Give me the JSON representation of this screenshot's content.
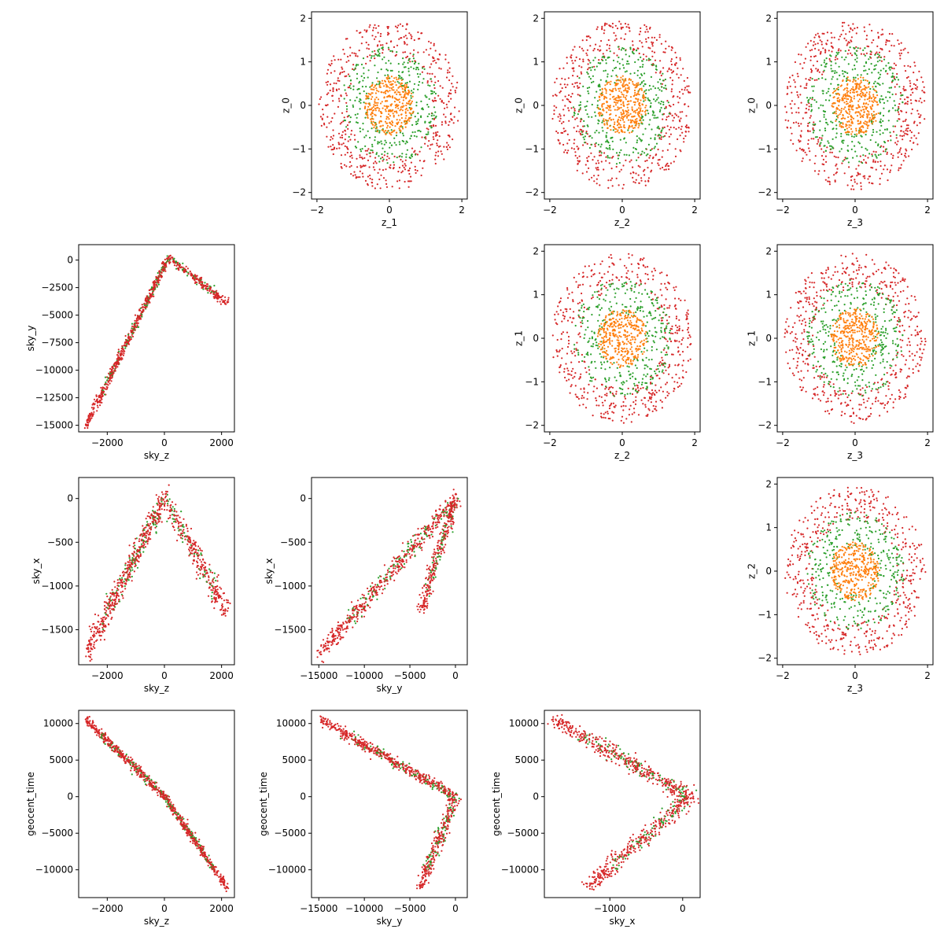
{
  "colors": {
    "inner": "#ff7f0e",
    "middle": "#2ca02c",
    "outer": "#d62728"
  },
  "chart_data": [
    {
      "type": "scatter",
      "panel": "z_1-z_0",
      "row": 0,
      "col": 1,
      "xlabel": "z_1",
      "ylabel": "z_0",
      "xlim": [
        -2.15,
        2.15
      ],
      "ylim": [
        -2.15,
        2.15
      ],
      "xticks": [
        -2,
        -1,
        0,
        1,
        2
      ],
      "yticks": [
        -2,
        -1,
        0,
        1,
        2
      ],
      "xtick_labels": [
        "−2",
        "0",
        "2"
      ],
      "xtick_values": [
        -2,
        0,
        2
      ],
      "ytick_labels": [
        "−2",
        "−1",
        "0",
        "1",
        "2"
      ],
      "pattern": "disk",
      "series": [
        {
          "color": "outer",
          "radius": [
            1.2,
            1.95
          ]
        },
        {
          "color": "middle",
          "radius": [
            0.6,
            1.35
          ]
        },
        {
          "color": "inner",
          "radius": [
            0,
            0.65
          ]
        }
      ]
    },
    {
      "type": "scatter",
      "panel": "z_2-z_0",
      "row": 0,
      "col": 2,
      "xlabel": "z_2",
      "ylabel": "z_0",
      "xlim": [
        -2.15,
        2.15
      ],
      "ylim": [
        -2.15,
        2.15
      ],
      "xtick_labels": [
        "−2",
        "0",
        "2"
      ],
      "xtick_values": [
        -2,
        0,
        2
      ],
      "ytick_labels": [
        "−2",
        "−1",
        "0",
        "1",
        "2"
      ],
      "ytick_values": [
        -2,
        -1,
        0,
        1,
        2
      ],
      "pattern": "disk"
    },
    {
      "type": "scatter",
      "panel": "z_3-z_0",
      "row": 0,
      "col": 3,
      "xlabel": "z_3",
      "ylabel": "z_0",
      "xlim": [
        -2.15,
        2.15
      ],
      "ylim": [
        -2.15,
        2.15
      ],
      "xtick_labels": [
        "−2",
        "0",
        "2"
      ],
      "xtick_values": [
        -2,
        0,
        2
      ],
      "ytick_labels": [
        "−2",
        "−1",
        "0",
        "1",
        "2"
      ],
      "ytick_values": [
        -2,
        -1,
        0,
        1,
        2
      ],
      "pattern": "disk"
    },
    {
      "type": "scatter",
      "panel": "sky_z-sky_y",
      "row": 1,
      "col": 0,
      "xlabel": "sky_z",
      "ylabel": "sky_y",
      "xlim": [
        -3000,
        2450
      ],
      "ylim": [
        -15600,
        1400
      ],
      "xtick_labels": [
        "−2000",
        "0",
        "2000"
      ],
      "xtick_values": [
        -2000,
        0,
        2000
      ],
      "ytick_labels": [
        "0",
        "−2500",
        "−5000",
        "−7500",
        "−10000",
        "−12500",
        "−15000"
      ],
      "ytick_values": [
        0,
        -2500,
        -5000,
        -7500,
        -10000,
        -12500,
        -15000
      ],
      "pattern": "polyline",
      "vertices": [
        [
          -2750,
          -15000
        ],
        [
          150,
          200
        ],
        [
          2200,
          -3900
        ]
      ],
      "spread": [
        45,
        200
      ]
    },
    {
      "type": "scatter",
      "panel": "z_2-z_1",
      "row": 1,
      "col": 2,
      "xlabel": "z_2",
      "ylabel": "z_1",
      "xlim": [
        -2.15,
        2.15
      ],
      "ylim": [
        -2.15,
        2.15
      ],
      "xtick_labels": [
        "−2",
        "0",
        "2"
      ],
      "xtick_values": [
        -2,
        0,
        2
      ],
      "ytick_labels": [
        "−2",
        "−1",
        "0",
        "1",
        "2"
      ],
      "ytick_values": [
        -2,
        -1,
        0,
        1,
        2
      ],
      "pattern": "disk"
    },
    {
      "type": "scatter",
      "panel": "z_3-z_1",
      "row": 1,
      "col": 3,
      "xlabel": "z_3",
      "ylabel": "z_1",
      "xlim": [
        -2.15,
        2.15
      ],
      "ylim": [
        -2.15,
        2.15
      ],
      "xtick_labels": [
        "−2",
        "0",
        "2"
      ],
      "xtick_values": [
        -2,
        0,
        2
      ],
      "ytick_labels": [
        "−2",
        "−1",
        "0",
        "1",
        "2"
      ],
      "ytick_values": [
        -2,
        -1,
        0,
        1,
        2
      ],
      "pattern": "disk"
    },
    {
      "type": "scatter",
      "panel": "sky_z-sky_x",
      "row": 2,
      "col": 0,
      "xlabel": "sky_z",
      "ylabel": "sky_x",
      "xlim": [
        -3000,
        2450
      ],
      "ylim": [
        -1900,
        240
      ],
      "xtick_labels": [
        "−2000",
        "0",
        "2000"
      ],
      "xtick_values": [
        -2000,
        0,
        2000
      ],
      "ytick_labels": [
        "0",
        "−500",
        "−1000",
        "−1500"
      ],
      "ytick_values": [
        0,
        -500,
        -1000,
        -1500
      ],
      "pattern": "polyline",
      "vertices": [
        [
          -2700,
          -1750
        ],
        [
          0,
          0
        ],
        [
          2200,
          -1300
        ]
      ],
      "spread": [
        90,
        70
      ]
    },
    {
      "type": "scatter",
      "panel": "sky_y-sky_x",
      "row": 2,
      "col": 1,
      "xlabel": "sky_y",
      "ylabel": "sky_x",
      "xlim": [
        -15800,
        1300
      ],
      "ylim": [
        -1900,
        240
      ],
      "xtick_labels": [
        "−15000",
        "−10000",
        "−5000",
        "0"
      ],
      "xtick_values": [
        -15000,
        -10000,
        -5000,
        0
      ],
      "ytick_labels": [
        "0",
        "−500",
        "−1000",
        "−1500"
      ],
      "ytick_values": [
        0,
        -500,
        -1000,
        -1500
      ],
      "pattern": "polyline",
      "vertices": [
        [
          -14900,
          -1770
        ],
        [
          0,
          0
        ],
        [
          -3800,
          -1300
        ]
      ],
      "spread": [
        250,
        50
      ]
    },
    {
      "type": "scatter",
      "panel": "z_3-z_2",
      "row": 2,
      "col": 3,
      "xlabel": "z_3",
      "ylabel": "z_2",
      "xlim": [
        -2.15,
        2.15
      ],
      "ylim": [
        -2.15,
        2.15
      ],
      "xtick_labels": [
        "−2",
        "0",
        "2"
      ],
      "xtick_values": [
        -2,
        0,
        2
      ],
      "ytick_labels": [
        "−2",
        "−1",
        "0",
        "1",
        "2"
      ],
      "ytick_values": [
        -2,
        -1,
        0,
        1,
        2
      ],
      "pattern": "disk"
    },
    {
      "type": "scatter",
      "panel": "sky_z-geocent_time",
      "row": 3,
      "col": 0,
      "xlabel": "sky_z",
      "ylabel": "geocent_time",
      "xlim": [
        -3000,
        2450
      ],
      "ylim": [
        -13800,
        11800
      ],
      "xtick_labels": [
        "−2000",
        "0",
        "2000"
      ],
      "xtick_values": [
        -2000,
        0,
        2000
      ],
      "ytick_labels": [
        "10000",
        "5000",
        "0",
        "−5000",
        "−10000"
      ],
      "ytick_values": [
        10000,
        5000,
        0,
        -5000,
        -10000
      ],
      "pattern": "polyline",
      "vertices": [
        [
          -2750,
          10600
        ],
        [
          0,
          0
        ],
        [
          2200,
          -12500
        ]
      ],
      "spread": [
        40,
        300
      ]
    },
    {
      "type": "scatter",
      "panel": "sky_y-geocent_time",
      "row": 3,
      "col": 1,
      "xlabel": "sky_y",
      "ylabel": "geocent_time",
      "xlim": [
        -15800,
        1300
      ],
      "ylim": [
        -13800,
        11800
      ],
      "xtick_labels": [
        "−15000",
        "−10000",
        "−5000",
        "0"
      ],
      "xtick_values": [
        -15000,
        -10000,
        -5000,
        0
      ],
      "ytick_labels": [
        "10000",
        "5000",
        "0",
        "−5000",
        "−10000"
      ],
      "ytick_values": [
        10000,
        5000,
        0,
        -5000,
        -10000
      ],
      "pattern": "polyline",
      "vertices": [
        [
          -14900,
          10600
        ],
        [
          0,
          0
        ],
        [
          -3900,
          -12500
        ]
      ],
      "spread": [
        300,
        300
      ]
    },
    {
      "type": "scatter",
      "panel": "sky_x-geocent_time",
      "row": 3,
      "col": 2,
      "xlabel": "sky_x",
      "ylabel": "geocent_time",
      "xlim": [
        -1900,
        240
      ],
      "ylim": [
        -13800,
        11800
      ],
      "xtick_labels": [
        "−1000",
        "0"
      ],
      "xtick_values": [
        -1000,
        0
      ],
      "ytick_labels": [
        "10000",
        "5000",
        "0",
        "−5000",
        "−10000"
      ],
      "ytick_values": [
        10000,
        5000,
        0,
        -5000,
        -10000
      ],
      "pattern": "polyline",
      "vertices": [
        [
          -1780,
          10600
        ],
        [
          100,
          0
        ],
        [
          -1330,
          -12600
        ]
      ],
      "spread": [
        60,
        500
      ]
    }
  ]
}
